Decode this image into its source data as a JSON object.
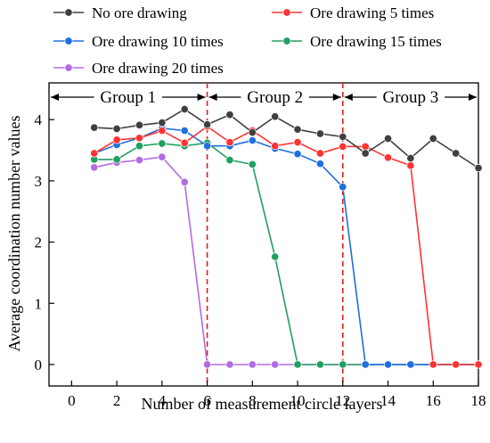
{
  "chart_data": {
    "type": "line",
    "xlabel": "Number of measurement circle layers",
    "ylabel": "Average coordination number values",
    "xlim": [
      -1,
      18
    ],
    "ylim": [
      -0.35,
      4.6
    ],
    "xticks": [
      0,
      2,
      4,
      6,
      8,
      10,
      12,
      14,
      16,
      18
    ],
    "yticks": [
      0,
      1,
      2,
      3,
      4
    ],
    "x": [
      1,
      2,
      3,
      4,
      5,
      6,
      7,
      8,
      9,
      10,
      11,
      12,
      13,
      14,
      15,
      16,
      17,
      18
    ],
    "series": [
      {
        "name": "No ore drawing",
        "color": "#404040",
        "values": [
          3.87,
          3.85,
          3.91,
          3.95,
          4.17,
          3.92,
          4.08,
          3.79,
          4.05,
          3.84,
          3.77,
          3.72,
          3.45,
          3.69,
          3.37,
          3.69,
          3.45,
          3.21
        ]
      },
      {
        "name": "Ore drawing 5 times",
        "color": "#ff3333",
        "values": [
          3.45,
          3.67,
          3.7,
          3.82,
          3.62,
          3.89,
          3.63,
          3.82,
          3.57,
          3.63,
          3.45,
          3.56,
          3.56,
          3.38,
          3.25,
          0,
          0,
          0
        ]
      },
      {
        "name": "Ore drawing 10 times",
        "color": "#1e6fe0",
        "values": [
          3.45,
          3.59,
          3.7,
          3.86,
          3.82,
          3.57,
          3.57,
          3.66,
          3.53,
          3.44,
          3.28,
          2.9,
          0,
          0,
          0,
          0,
          0,
          0
        ]
      },
      {
        "name": "Ore drawing 15 times",
        "color": "#20a060",
        "values": [
          3.35,
          3.35,
          3.57,
          3.61,
          3.57,
          3.62,
          3.34,
          3.27,
          1.76,
          0,
          0,
          0,
          0,
          0,
          0,
          0,
          0,
          0
        ]
      },
      {
        "name": "Ore drawing 20 times",
        "color": "#b36ae2",
        "values": [
          3.22,
          3.3,
          3.34,
          3.39,
          2.98,
          0,
          0,
          0,
          0,
          0,
          0,
          0,
          0,
          0,
          0,
          0,
          0,
          0
        ]
      }
    ],
    "group_boundaries": [
      6,
      12
    ],
    "groups": [
      {
        "label": "Group 1",
        "from": -1,
        "to": 6
      },
      {
        "label": "Group 2",
        "from": 6,
        "to": 12
      },
      {
        "label": "Group 3",
        "from": 12,
        "to": 18
      }
    ],
    "boundary_color": "#e0201c",
    "legend_position": "top"
  }
}
